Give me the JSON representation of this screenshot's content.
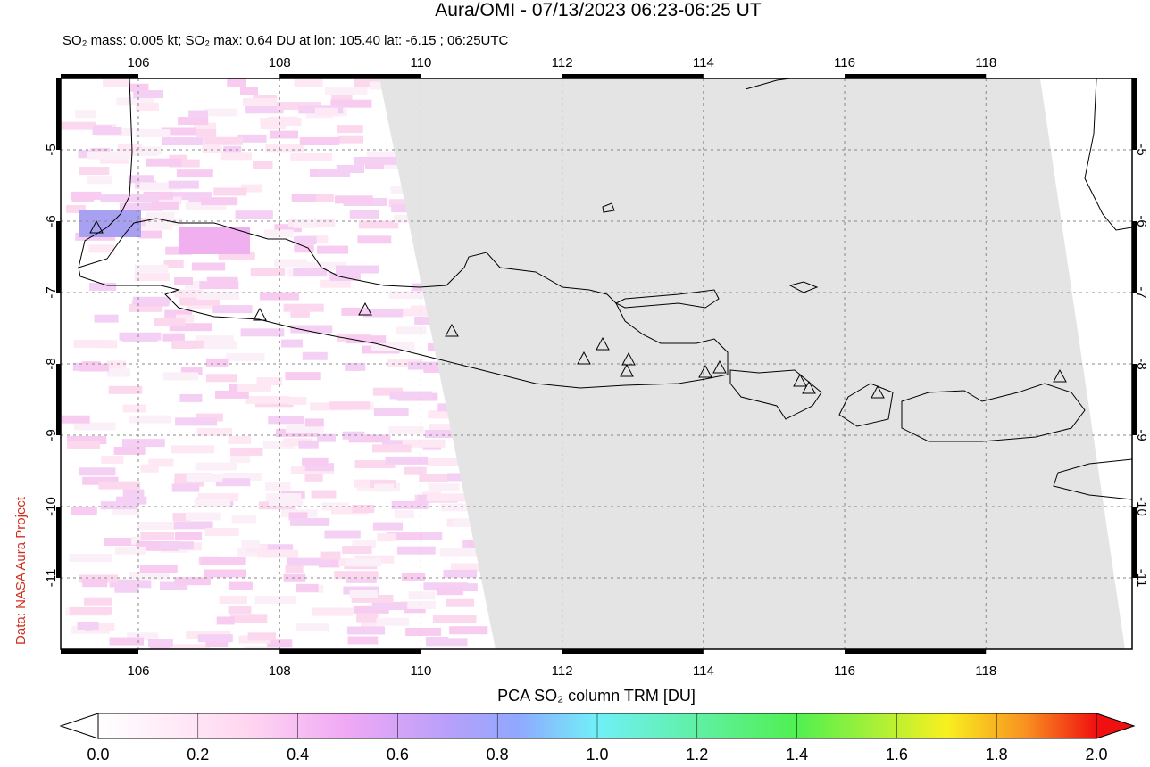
{
  "title": "Aura/OMI - 07/13/2023 06:23-06:25 UT",
  "subtitle": "SO₂ mass: 0.005 kt; SO₂ max: 0.64 DU at lon: 105.40 lat: -6.15 ; 06:25UTC",
  "credit": "Data: NASA Aura Project",
  "map": {
    "lonlim": [
      104.9,
      120.07
    ],
    "latlim": [
      -12,
      -4
    ],
    "lonticks": [
      106,
      108,
      110,
      112,
      114,
      116,
      118
    ],
    "latticks": [
      -5,
      -6,
      -7,
      -8,
      -9,
      -10,
      -11
    ]
  },
  "colorbar": {
    "label": "PCA SO₂ column TRM [DU]",
    "lim": [
      0,
      2
    ],
    "ticks": [
      {
        "value": 0,
        "label": "0.0"
      },
      {
        "value": 0.2,
        "label": "0.2"
      },
      {
        "value": 0.4,
        "label": "0.4"
      },
      {
        "value": 0.6,
        "label": "0.6"
      },
      {
        "value": 0.8,
        "label": "0.8"
      },
      {
        "value": 1,
        "label": "1.0"
      },
      {
        "value": 1.2,
        "label": "1.2"
      },
      {
        "value": 1.4,
        "label": "1.4"
      },
      {
        "value": 1.6,
        "label": "1.6"
      },
      {
        "value": 1.8,
        "label": "1.8"
      },
      {
        "value": 2,
        "label": "2.0"
      }
    ]
  }
}
